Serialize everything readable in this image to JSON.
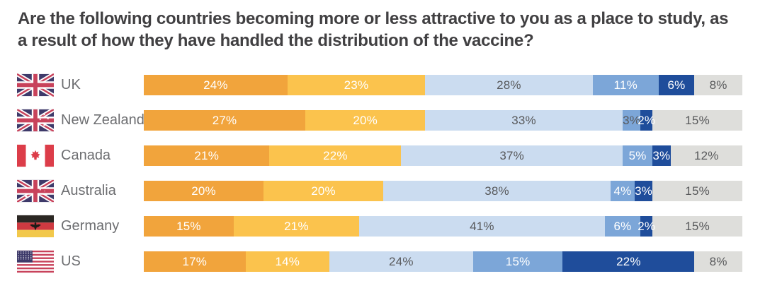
{
  "title": "Are the following countries becoming more or less attractive to you as a place to study, as a result of how they have handled the distribution of the vaccine?",
  "palette": {
    "title_text": "#414042",
    "country_label_text": "#6D6E71",
    "dark_segment_label": "#58595B"
  },
  "chart_data": {
    "type": "bar",
    "stacked": true,
    "orientation": "horizontal",
    "unit": "%",
    "xlim": [
      0,
      100
    ],
    "grid": false,
    "legend": "none",
    "categories": [
      "UK",
      "New Zealand",
      "Canada",
      "Australia",
      "Germany",
      "US"
    ],
    "flags": [
      "uk",
      "new-zealand",
      "canada",
      "australia",
      "germany",
      "us"
    ],
    "series": [
      {
        "name": "orange",
        "color": "#F1A43C",
        "label_color": "#FFFFFF",
        "values": [
          24,
          27,
          21,
          20,
          15,
          17
        ]
      },
      {
        "name": "yellow",
        "color": "#FBC34D",
        "label_color": "#FFFFFF",
        "values": [
          23,
          20,
          22,
          20,
          21,
          14
        ]
      },
      {
        "name": "light-blue",
        "color": "#CBDCF0",
        "label_color": "#58595B",
        "values": [
          28,
          33,
          37,
          38,
          41,
          24
        ]
      },
      {
        "name": "mid-blue",
        "color": "#7CA6D8",
        "label_color": "#FFFFFF",
        "values": [
          11,
          3,
          5,
          4,
          6,
          15
        ]
      },
      {
        "name": "dark-blue",
        "color": "#1F4D9B",
        "label_color": "#FFFFFF",
        "values": [
          6,
          2,
          3,
          3,
          2,
          22
        ]
      },
      {
        "name": "gray",
        "color": "#DEDEDB",
        "label_color": "#58595B",
        "values": [
          8,
          15,
          12,
          15,
          15,
          8
        ]
      }
    ],
    "label_overrides": [
      {
        "row": "New Zealand",
        "series": "mid-blue",
        "color": "#58595B"
      }
    ]
  }
}
